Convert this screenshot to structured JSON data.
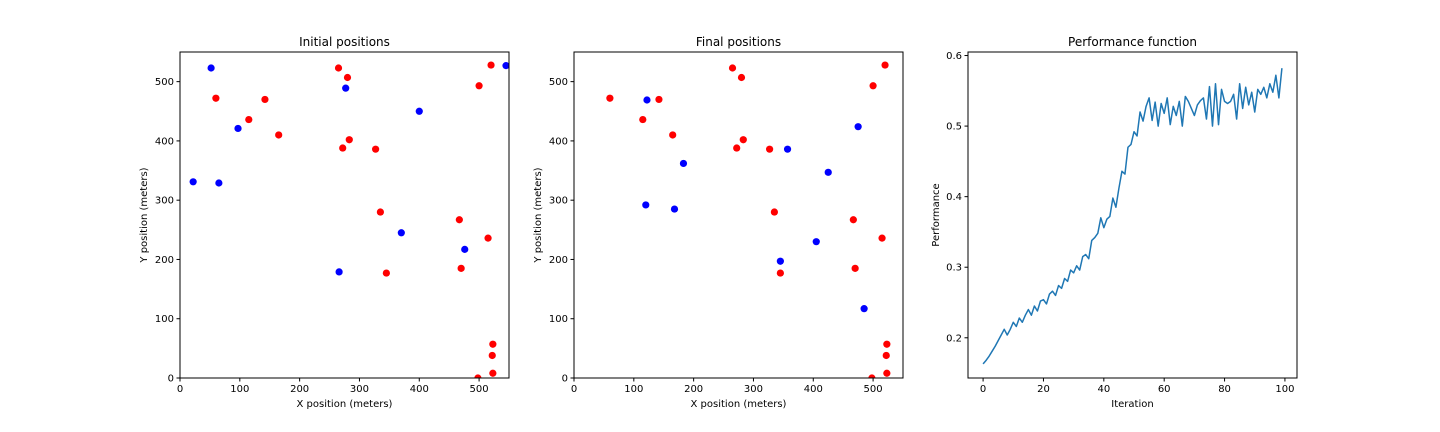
{
  "chart_data": [
    {
      "type": "scatter",
      "title": "Initial positions",
      "xlabel": "X position (meters)",
      "ylabel": "Y position (meters)",
      "xlim": [
        0,
        550
      ],
      "ylim": [
        0,
        550
      ],
      "xticks": [
        0,
        100,
        200,
        300,
        400,
        500
      ],
      "yticks": [
        0,
        100,
        200,
        300,
        400,
        500
      ],
      "grid": false,
      "series": [
        {
          "color": "#ff0000",
          "points": [
            [
              265,
              523
            ],
            [
              280,
              507
            ],
            [
              60,
              472
            ],
            [
              142,
              470
            ],
            [
              500,
              493
            ],
            [
              520,
              528
            ],
            [
              115,
              436
            ],
            [
              165,
              410
            ],
            [
              283,
              402
            ],
            [
              272,
              388
            ],
            [
              327,
              386
            ],
            [
              335,
              280
            ],
            [
              467,
              267
            ],
            [
              515,
              236
            ],
            [
              470,
              185
            ],
            [
              345,
              177
            ],
            [
              523,
              57
            ],
            [
              522,
              38
            ],
            [
              498,
              0
            ],
            [
              523,
              8
            ]
          ]
        },
        {
          "color": "#0000ff",
          "points": [
            [
              52,
              523
            ],
            [
              277,
              489
            ],
            [
              545,
              527
            ],
            [
              97,
              421
            ],
            [
              400,
              450
            ],
            [
              22,
              331
            ],
            [
              65,
              329
            ],
            [
              370,
              245
            ],
            [
              476,
              217
            ],
            [
              266,
              179
            ]
          ]
        }
      ]
    },
    {
      "type": "scatter",
      "title": "Final positions",
      "xlabel": "X position (meters)",
      "ylabel": "Y position (meters)",
      "xlim": [
        0,
        550
      ],
      "ylim": [
        0,
        550
      ],
      "xticks": [
        0,
        100,
        200,
        300,
        400,
        500
      ],
      "yticks": [
        0,
        100,
        200,
        300,
        400,
        500
      ],
      "grid": false,
      "series": [
        {
          "color": "#ff0000",
          "points": [
            [
              265,
              523
            ],
            [
              280,
              507
            ],
            [
              60,
              472
            ],
            [
              142,
              470
            ],
            [
              500,
              493
            ],
            [
              520,
              528
            ],
            [
              115,
              436
            ],
            [
              165,
              410
            ],
            [
              283,
              402
            ],
            [
              272,
              388
            ],
            [
              327,
              386
            ],
            [
              335,
              280
            ],
            [
              467,
              267
            ],
            [
              515,
              236
            ],
            [
              470,
              185
            ],
            [
              345,
              177
            ],
            [
              523,
              57
            ],
            [
              522,
              38
            ],
            [
              498,
              0
            ],
            [
              523,
              8
            ]
          ]
        },
        {
          "color": "#0000ff",
          "points": [
            [
              122,
              469
            ],
            [
              475,
              424
            ],
            [
              183,
              362
            ],
            [
              357,
              386
            ],
            [
              425,
              347
            ],
            [
              120,
              292
            ],
            [
              168,
              285
            ],
            [
              405,
              230
            ],
            [
              345,
              197
            ],
            [
              485,
              117
            ]
          ]
        }
      ]
    },
    {
      "type": "line",
      "title": "Performance function",
      "xlabel": "Iteration",
      "ylabel": "Performance",
      "xlim": [
        -5,
        104
      ],
      "ylim": [
        0.143,
        0.605
      ],
      "xticks": [
        0,
        20,
        40,
        60,
        80,
        100
      ],
      "yticks": [
        0.2,
        0.3,
        0.4,
        0.5,
        0.6
      ],
      "grid": false,
      "series": [
        {
          "color": "#1f77b4",
          "x": [
            0,
            1,
            2,
            3,
            4,
            5,
            6,
            7,
            8,
            9,
            10,
            11,
            12,
            13,
            14,
            15,
            16,
            17,
            18,
            19,
            20,
            21,
            22,
            23,
            24,
            25,
            26,
            27,
            28,
            29,
            30,
            31,
            32,
            33,
            34,
            35,
            36,
            37,
            38,
            39,
            40,
            41,
            42,
            43,
            44,
            45,
            46,
            47,
            48,
            49,
            50,
            51,
            52,
            53,
            54,
            55,
            56,
            57,
            58,
            59,
            60,
            61,
            62,
            63,
            64,
            65,
            66,
            67,
            68,
            69,
            70,
            71,
            72,
            73,
            74,
            75,
            76,
            77,
            78,
            79,
            80,
            81,
            82,
            83,
            84,
            85,
            86,
            87,
            88,
            89,
            90,
            91,
            92,
            93,
            94,
            95,
            96,
            97,
            98,
            99
          ],
          "y": [
            0.163,
            0.168,
            0.174,
            0.181,
            0.188,
            0.196,
            0.204,
            0.212,
            0.204,
            0.212,
            0.222,
            0.216,
            0.228,
            0.222,
            0.232,
            0.24,
            0.232,
            0.245,
            0.238,
            0.252,
            0.254,
            0.248,
            0.262,
            0.266,
            0.26,
            0.274,
            0.27,
            0.284,
            0.28,
            0.296,
            0.292,
            0.302,
            0.296,
            0.315,
            0.318,
            0.312,
            0.338,
            0.342,
            0.348,
            0.37,
            0.356,
            0.368,
            0.372,
            0.398,
            0.385,
            0.412,
            0.436,
            0.432,
            0.47,
            0.474,
            0.492,
            0.486,
            0.52,
            0.507,
            0.528,
            0.54,
            0.508,
            0.534,
            0.5,
            0.532,
            0.518,
            0.54,
            0.502,
            0.528,
            0.515,
            0.535,
            0.5,
            0.542,
            0.535,
            0.525,
            0.515,
            0.53,
            0.536,
            0.54,
            0.51,
            0.556,
            0.5,
            0.56,
            0.502,
            0.552,
            0.535,
            0.532,
            0.535,
            0.545,
            0.51,
            0.56,
            0.525,
            0.555,
            0.53,
            0.548,
            0.52,
            0.552,
            0.545,
            0.555,
            0.54,
            0.56,
            0.548,
            0.572,
            0.54,
            0.582
          ]
        }
      ]
    }
  ]
}
